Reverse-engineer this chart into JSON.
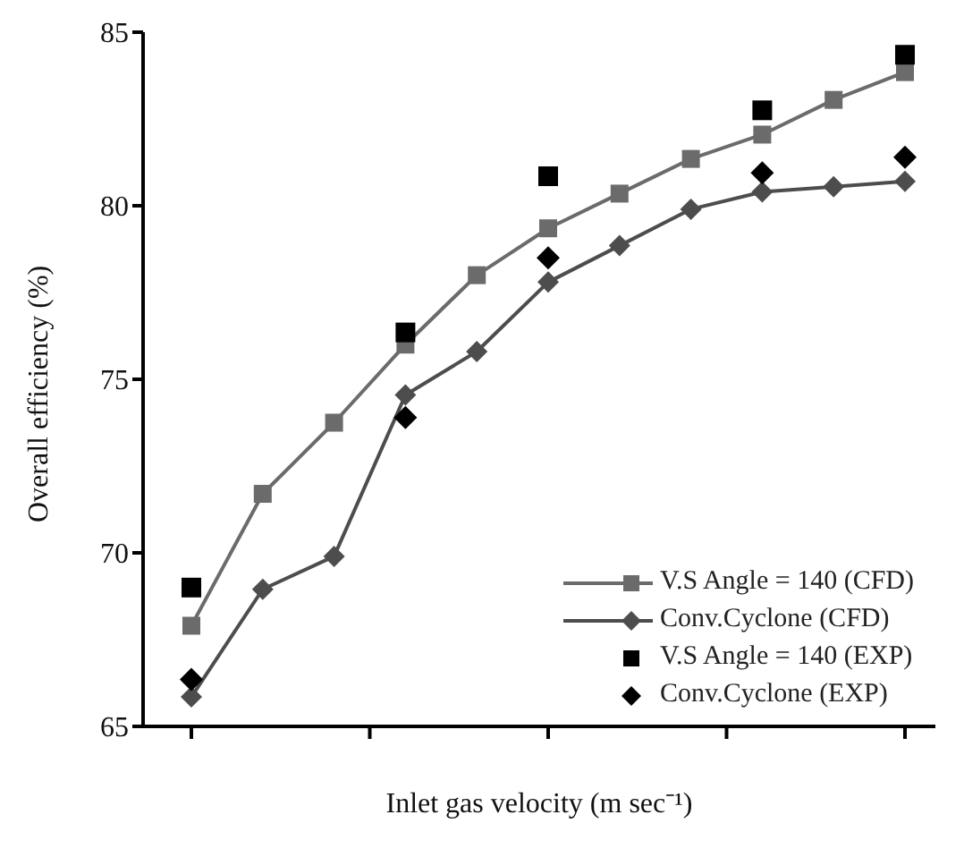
{
  "chart_data": {
    "type": "line",
    "xlabel": "Inlet gas velocity (m sec⁻¹)",
    "ylabel": "Overall efficiency (%)",
    "categories": [
      null,
      null,
      null,
      null,
      null,
      null,
      null,
      null,
      null,
      null,
      null
    ],
    "ylim": [
      65,
      85
    ],
    "yticks": [
      65,
      70,
      75,
      80,
      85
    ],
    "grid": false,
    "legend": "bottom right",
    "line_style": "solid",
    "series": [
      {
        "name": "V.S Angle = 140 (CFD)",
        "marker": "square",
        "color": "#6b6b6b",
        "values": [
          67.9,
          71.7,
          73.75,
          76.0,
          78.0,
          79.35,
          80.35,
          81.35,
          82.05,
          83.05,
          83.85
        ]
      },
      {
        "name": "Conv.Cyclone (CFD)",
        "marker": "diamond",
        "color": "#4d4d4d",
        "values": [
          65.85,
          68.95,
          69.9,
          74.55,
          75.8,
          77.8,
          78.85,
          79.9,
          80.4,
          80.55,
          80.7
        ]
      },
      {
        "name": "V.S Angle = 140 (EXP)",
        "type": "scatter",
        "marker": "square",
        "color": "#000000",
        "values": [
          69.0,
          null,
          null,
          76.35,
          null,
          80.85,
          null,
          null,
          82.75,
          null,
          84.35
        ]
      },
      {
        "name": "Conv.Cyclone (EXP)",
        "type": "scatter",
        "marker": "diamond",
        "color": "#000000",
        "values": [
          66.35,
          null,
          null,
          73.9,
          null,
          78.5,
          null,
          null,
          80.95,
          null,
          81.4
        ]
      }
    ]
  }
}
